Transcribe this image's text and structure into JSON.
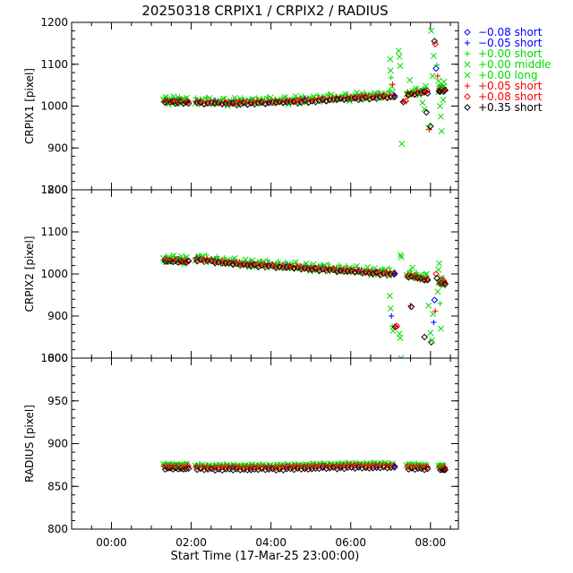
{
  "chart_data": {
    "type": "scatter",
    "title": "20250318 CRPIX1 / CRPIX2 / RADIUS",
    "xlabel": "Start Time (17-Mar-25 23:00:00)",
    "x_unit": "hours after start",
    "xlim": [
      0,
      9.7
    ],
    "x_ticks": [
      {
        "value": 1,
        "label": "00:00"
      },
      {
        "value": 3,
        "label": "02:00"
      },
      {
        "value": 5,
        "label": "04:00"
      },
      {
        "value": 7,
        "label": "06:00"
      },
      {
        "value": 9,
        "label": "08:00"
      }
    ],
    "legend_placement": "right, outside the top panel",
    "legend": [
      {
        "label": "−0.08 short",
        "color": "#0000ff",
        "symbol": "diamond"
      },
      {
        "label": "−0.05 short",
        "color": "#0000ff",
        "symbol": "plus"
      },
      {
        "label": "+0.00 short",
        "color": "#00dd00",
        "symbol": "plus"
      },
      {
        "label": "+0.00 middle",
        "color": "#00dd00",
        "symbol": "cross"
      },
      {
        "label": "+0.00 long",
        "color": "#00dd00",
        "symbol": "cross"
      },
      {
        "label": "+0.05 short",
        "color": "#ff0000",
        "symbol": "plus"
      },
      {
        "label": "+0.08 short",
        "color": "#ff0000",
        "symbol": "diamond"
      },
      {
        "label": "+0.35 short",
        "color": "#000000",
        "symbol": "diamond"
      }
    ],
    "panels": [
      {
        "ylabel": "CRPIX1 [pixel]",
        "ylim": [
          800,
          1200
        ],
        "y_ticks": [
          {
            "value": 800,
            "label": "800"
          },
          {
            "value": 900,
            "label": "900"
          },
          {
            "value": 1000,
            "label": "1000"
          },
          {
            "value": 1100,
            "label": "1100"
          },
          {
            "value": 1200,
            "label": "1200"
          }
        ],
        "trend": [
          [
            2.3,
            1014
          ],
          [
            2.9,
            1013
          ],
          [
            3.1,
            1011
          ],
          [
            4,
            1010
          ],
          [
            5,
            1012
          ],
          [
            6,
            1016
          ],
          [
            7,
            1022
          ],
          [
            7.9,
            1026
          ],
          [
            8.1,
            1025
          ],
          [
            8.5,
            1032
          ],
          [
            9,
            1040
          ],
          [
            9.3,
            1042
          ]
        ],
        "scatter": [
          1.5,
          2.5,
          4.5,
          7.5,
          -6.5,
          5.5,
          -9.5,
          3.5,
          8.5,
          -3.5,
          6.5,
          -1.5,
          9.5,
          -4.5,
          2.0,
          -8.0,
          4.0
        ],
        "outliers": [
          {
            "x": 7.99,
            "y": 1112,
            "color": "#00dd00",
            "symbol": "cross"
          },
          {
            "x": 8.0,
            "y": 1085,
            "color": "#00dd00",
            "symbol": "cross"
          },
          {
            "x": 8.01,
            "y": 1068,
            "color": "#00dd00",
            "symbol": "plus"
          },
          {
            "x": 8.03,
            "y": 1047,
            "color": "#00dd00",
            "symbol": "cross"
          },
          {
            "x": 8.05,
            "y": 1052,
            "color": "#ff0000",
            "symbol": "plus"
          },
          {
            "x": 8.2,
            "y": 1132,
            "color": "#00dd00",
            "symbol": "cross"
          },
          {
            "x": 8.22,
            "y": 1118,
            "color": "#00dd00",
            "symbol": "cross"
          },
          {
            "x": 8.24,
            "y": 1096,
            "color": "#00dd00",
            "symbol": "cross"
          },
          {
            "x": 8.28,
            "y": 910,
            "color": "#00dd00",
            "symbol": "cross"
          },
          {
            "x": 8.3,
            "y": 1011,
            "color": "#ff0000",
            "symbol": "plus"
          },
          {
            "x": 8.32,
            "y": 1010,
            "color": "#000000",
            "symbol": "diamond"
          },
          {
            "x": 8.38,
            "y": 1012,
            "color": "#ff0000",
            "symbol": "diamond"
          },
          {
            "x": 8.48,
            "y": 1062,
            "color": "#00dd00",
            "symbol": "cross"
          },
          {
            "x": 8.8,
            "y": 1008,
            "color": "#00dd00",
            "symbol": "cross"
          },
          {
            "x": 8.85,
            "y": 993,
            "color": "#00dd00",
            "symbol": "cross"
          },
          {
            "x": 8.9,
            "y": 985,
            "color": "#000000",
            "symbol": "diamond"
          },
          {
            "x": 8.95,
            "y": 948,
            "color": "#00dd00",
            "symbol": "cross"
          },
          {
            "x": 8.97,
            "y": 944,
            "color": "#ff0000",
            "symbol": "plus"
          },
          {
            "x": 9.0,
            "y": 952,
            "color": "#000000",
            "symbol": "diamond"
          },
          {
            "x": 9.05,
            "y": 1072,
            "color": "#00dd00",
            "symbol": "cross"
          },
          {
            "x": 9.02,
            "y": 1180,
            "color": "#00dd00",
            "symbol": "cross"
          },
          {
            "x": 9.08,
            "y": 1120,
            "color": "#00dd00",
            "symbol": "cross"
          },
          {
            "x": 9.1,
            "y": 1155,
            "color": "#000000",
            "symbol": "diamond"
          },
          {
            "x": 9.12,
            "y": 1148,
            "color": "#ff0000",
            "symbol": "diamond"
          },
          {
            "x": 9.14,
            "y": 1090,
            "color": "#0000ff",
            "symbol": "diamond"
          },
          {
            "x": 9.16,
            "y": 1098,
            "color": "#00dd00",
            "symbol": "plus"
          },
          {
            "x": 9.18,
            "y": 1072,
            "color": "#ff0000",
            "symbol": "plus"
          },
          {
            "x": 9.2,
            "y": 1060,
            "color": "#00dd00",
            "symbol": "cross"
          },
          {
            "x": 9.22,
            "y": 1035,
            "color": "#000000",
            "symbol": "diamond"
          },
          {
            "x": 9.24,
            "y": 1000,
            "color": "#00dd00",
            "symbol": "cross"
          },
          {
            "x": 9.26,
            "y": 975,
            "color": "#00dd00",
            "symbol": "cross"
          },
          {
            "x": 9.28,
            "y": 940,
            "color": "#00dd00",
            "symbol": "cross"
          },
          {
            "x": 9.3,
            "y": 1050,
            "color": "#00dd00",
            "symbol": "plus"
          },
          {
            "x": 9.32,
            "y": 1015,
            "color": "#00dd00",
            "symbol": "cross"
          },
          {
            "x": 9.34,
            "y": 1058,
            "color": "#00dd00",
            "symbol": "cross"
          }
        ]
      },
      {
        "ylabel": "CRPIX2 [pixel]",
        "ylim": [
          800,
          1200
        ],
        "y_ticks": [
          {
            "value": 800,
            "label": "800"
          },
          {
            "value": 900,
            "label": "900"
          },
          {
            "value": 1000,
            "label": "1000"
          },
          {
            "value": 1100,
            "label": "1100"
          },
          {
            "value": 1200,
            "label": "1200"
          }
        ],
        "trend": [
          [
            2.3,
            1035
          ],
          [
            2.9,
            1033
          ],
          [
            3.1,
            1038
          ],
          [
            4,
            1028
          ],
          [
            5,
            1022
          ],
          [
            6,
            1016
          ],
          [
            7,
            1010
          ],
          [
            7.9,
            1004
          ],
          [
            8.1,
            1002
          ],
          [
            8.5,
            998
          ],
          [
            9,
            986
          ],
          [
            9.3,
            982
          ]
        ],
        "scatter": [
          2.5,
          -4.5,
          6.5,
          -2.5,
          8.5,
          -7.5,
          4.5,
          -9.5,
          1.5,
          -5.5,
          7.5,
          -1.5,
          9.5,
          -6.5,
          3.0,
          -3.0,
          5.0
        ],
        "outliers": [
          {
            "x": 7.98,
            "y": 948,
            "color": "#00dd00",
            "symbol": "cross"
          },
          {
            "x": 8.0,
            "y": 918,
            "color": "#00dd00",
            "symbol": "cross"
          },
          {
            "x": 8.02,
            "y": 900,
            "color": "#0000ff",
            "symbol": "plus"
          },
          {
            "x": 8.04,
            "y": 876,
            "color": "#00dd00",
            "symbol": "plus"
          },
          {
            "x": 8.06,
            "y": 865,
            "color": "#00dd00",
            "symbol": "cross"
          },
          {
            "x": 8.1,
            "y": 875,
            "color": "#ff0000",
            "symbol": "plus"
          },
          {
            "x": 8.12,
            "y": 874,
            "color": "#000000",
            "symbol": "diamond"
          },
          {
            "x": 8.16,
            "y": 876,
            "color": "#ff0000",
            "symbol": "diamond"
          },
          {
            "x": 8.25,
            "y": 1045,
            "color": "#00dd00",
            "symbol": "cross"
          },
          {
            "x": 8.27,
            "y": 1040,
            "color": "#00dd00",
            "symbol": "cross"
          },
          {
            "x": 8.22,
            "y": 858,
            "color": "#00dd00",
            "symbol": "cross"
          },
          {
            "x": 8.24,
            "y": 848,
            "color": "#00dd00",
            "symbol": "cross"
          },
          {
            "x": 8.26,
            "y": 800,
            "color": "#00dd00",
            "symbol": "cross"
          },
          {
            "x": 8.5,
            "y": 925,
            "color": "#ff0000",
            "symbol": "plus"
          },
          {
            "x": 8.52,
            "y": 922,
            "color": "#000000",
            "symbol": "diamond"
          },
          {
            "x": 8.55,
            "y": 1015,
            "color": "#00dd00",
            "symbol": "cross"
          },
          {
            "x": 8.85,
            "y": 850,
            "color": "#000000",
            "symbol": "diamond"
          },
          {
            "x": 8.9,
            "y": 1000,
            "color": "#00dd00",
            "symbol": "cross"
          },
          {
            "x": 8.95,
            "y": 925,
            "color": "#00dd00",
            "symbol": "cross"
          },
          {
            "x": 9.0,
            "y": 860,
            "color": "#00dd00",
            "symbol": "cross"
          },
          {
            "x": 9.02,
            "y": 838,
            "color": "#000000",
            "symbol": "diamond"
          },
          {
            "x": 9.04,
            "y": 842,
            "color": "#00dd00",
            "symbol": "cross"
          },
          {
            "x": 9.06,
            "y": 905,
            "color": "#00dd00",
            "symbol": "cross"
          },
          {
            "x": 9.08,
            "y": 885,
            "color": "#0000ff",
            "symbol": "plus"
          },
          {
            "x": 9.1,
            "y": 938,
            "color": "#0000ff",
            "symbol": "diamond"
          },
          {
            "x": 9.12,
            "y": 912,
            "color": "#ff0000",
            "symbol": "plus"
          },
          {
            "x": 9.14,
            "y": 1000,
            "color": "#ff0000",
            "symbol": "diamond"
          },
          {
            "x": 9.16,
            "y": 990,
            "color": "#000000",
            "symbol": "diamond"
          },
          {
            "x": 9.18,
            "y": 958,
            "color": "#00dd00",
            "symbol": "cross"
          },
          {
            "x": 9.2,
            "y": 1010,
            "color": "#00dd00",
            "symbol": "cross"
          },
          {
            "x": 9.22,
            "y": 1025,
            "color": "#00dd00",
            "symbol": "cross"
          },
          {
            "x": 9.24,
            "y": 930,
            "color": "#00dd00",
            "symbol": "plus"
          },
          {
            "x": 9.26,
            "y": 870,
            "color": "#00dd00",
            "symbol": "cross"
          },
          {
            "x": 9.3,
            "y": 990,
            "color": "#ff0000",
            "symbol": "plus"
          }
        ]
      },
      {
        "ylabel": "RADIUS [pixel]",
        "ylim": [
          800,
          1000
        ],
        "y_ticks": [
          {
            "value": 800,
            "label": "800"
          },
          {
            "value": 850,
            "label": "850"
          },
          {
            "value": 900,
            "label": "900"
          },
          {
            "value": 950,
            "label": "950"
          },
          {
            "value": 1000,
            "label": "1000"
          }
        ],
        "trend": [
          [
            2.3,
            873
          ],
          [
            2.9,
            873
          ],
          [
            3.1,
            872
          ],
          [
            4,
            872
          ],
          [
            5,
            872
          ],
          [
            6,
            873
          ],
          [
            7,
            874
          ],
          [
            7.9,
            874
          ],
          [
            8.5,
            873
          ],
          [
            9,
            872
          ],
          [
            9.3,
            872
          ]
        ],
        "scatter": [
          1.2,
          -0.8,
          2.0,
          -1.5,
          0.5,
          -2.0,
          1.5,
          -0.3,
          0.9,
          -1.1,
          2.2,
          -1.8,
          0.2,
          -0.6,
          1.0,
          -1.3,
          0.7
        ],
        "outliers": []
      }
    ]
  }
}
